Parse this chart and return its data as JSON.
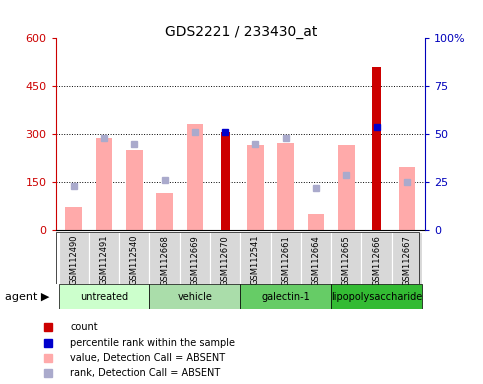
{
  "title": "GDS2221 / 233430_at",
  "samples": [
    "GSM112490",
    "GSM112491",
    "GSM112540",
    "GSM112668",
    "GSM112669",
    "GSM112670",
    "GSM112541",
    "GSM112661",
    "GSM112664",
    "GSM112665",
    "GSM112666",
    "GSM112667"
  ],
  "group_labels": [
    "untreated",
    "vehicle",
    "galectin-1",
    "lipopolysaccharide"
  ],
  "group_ranges": [
    [
      0,
      3
    ],
    [
      3,
      6
    ],
    [
      6,
      9
    ],
    [
      9,
      12
    ]
  ],
  "group_colors": [
    "#ccffcc",
    "#aaddaa",
    "#66cc66",
    "#33bb33"
  ],
  "count_values": [
    null,
    null,
    null,
    null,
    null,
    308,
    null,
    null,
    null,
    null,
    510,
    null
  ],
  "count_color": "#cc0000",
  "percentile_values": [
    null,
    null,
    null,
    null,
    null,
    51,
    null,
    null,
    null,
    null,
    54,
    null
  ],
  "percentile_color": "#0000cc",
  "absent_value": [
    72,
    288,
    252,
    118,
    332,
    null,
    268,
    272,
    52,
    268,
    null,
    198
  ],
  "absent_value_color": "#ffaaaa",
  "absent_rank": [
    23,
    48,
    45,
    26,
    51,
    null,
    45,
    48,
    22,
    29,
    null,
    25
  ],
  "absent_rank_color": "#aaaacc",
  "left_ylim": [
    0,
    600
  ],
  "left_yticks": [
    0,
    150,
    300,
    450,
    600
  ],
  "left_tick_color": "#cc0000",
  "right_ylim": [
    0,
    100
  ],
  "right_yticks": [
    0,
    25,
    50,
    75,
    100
  ],
  "right_tick_color": "#0000bb",
  "grid_lines": [
    150,
    300,
    450
  ],
  "sample_bg_color": "#d8d8d8",
  "legend_items": [
    {
      "color": "#cc0000",
      "label": "count"
    },
    {
      "color": "#0000cc",
      "label": "percentile rank within the sample"
    },
    {
      "color": "#ffaaaa",
      "label": "value, Detection Call = ABSENT"
    },
    {
      "color": "#aaaacc",
      "label": "rank, Detection Call = ABSENT"
    }
  ]
}
